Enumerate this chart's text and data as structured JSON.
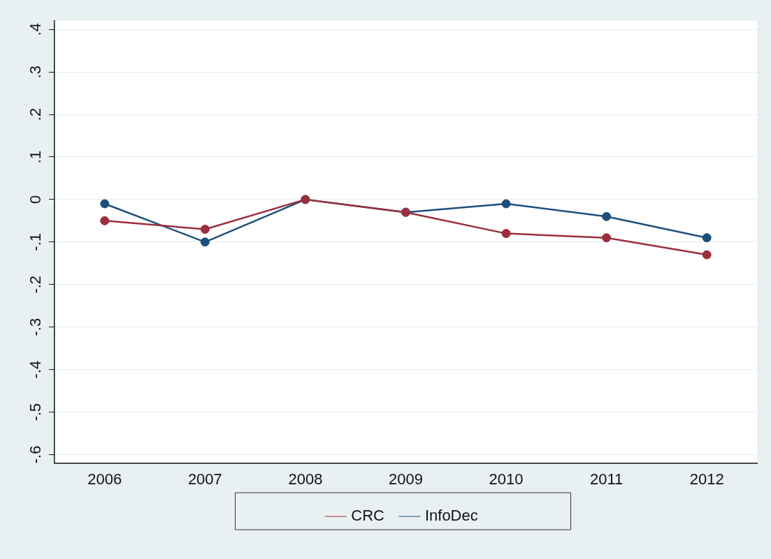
{
  "chart_data": {
    "type": "line",
    "categories": [
      "2006",
      "2007",
      "2008",
      "2009",
      "2010",
      "2011",
      "2012"
    ],
    "series": [
      {
        "name": "CRC",
        "color": "#9b2f3d",
        "values": [
          -0.05,
          -0.07,
          0,
          -0.03,
          -0.08,
          -0.09,
          -0.13
        ]
      },
      {
        "name": "InfoDec",
        "color": "#1d4f7c",
        "values": [
          -0.01,
          -0.1,
          0,
          -0.03,
          -0.01,
          -0.04,
          -0.09
        ]
      }
    ],
    "ylim": [
      -0.62,
      0.42
    ],
    "yticks": [
      {
        "value": -0.6,
        "label": "-.6"
      },
      {
        "value": -0.5,
        "label": "-.5"
      },
      {
        "value": -0.4,
        "label": "-.4"
      },
      {
        "value": -0.3,
        "label": "-.3"
      },
      {
        "value": -0.2,
        "label": "-.2"
      },
      {
        "value": -0.1,
        "label": "-.1"
      },
      {
        "value": 0,
        "label": "0"
      },
      {
        "value": 0.1,
        "label": ".1"
      },
      {
        "value": 0.2,
        "label": ".2"
      },
      {
        "value": 0.3,
        "label": ".3"
      },
      {
        "value": 0.4,
        "label": ".4"
      }
    ],
    "grid": "y",
    "legend": "bottom",
    "marker": "circle",
    "line_style": "solid"
  }
}
